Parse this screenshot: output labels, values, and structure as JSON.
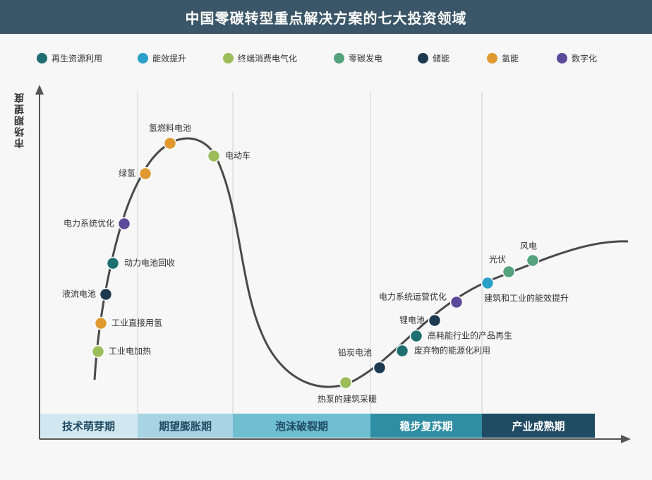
{
  "header": {
    "title": "中国零碳转型重点解决方案的七大投资领域"
  },
  "chart_data": {
    "type": "scatter",
    "title": "中国零碳转型重点解决方案的七大投资领域",
    "ylabel": "市场期望度",
    "xlabel": "",
    "grid": false,
    "legend_position": "top",
    "legend": [
      {
        "name": "再生资源利用",
        "color": "#1f6e72"
      },
      {
        "name": "能效提升",
        "color": "#2a9fc7"
      },
      {
        "name": "终端消费电气化",
        "color": "#9cbd5a"
      },
      {
        "name": "零碳发电",
        "color": "#55a27e"
      },
      {
        "name": "储能",
        "color": "#1d3a51"
      },
      {
        "name": "氢能",
        "color": "#e0992f"
      },
      {
        "name": "数字化",
        "color": "#5a4a9a"
      }
    ],
    "phases": [
      {
        "label": "技术萌芽期",
        "bg": "#d2e8f1",
        "fg": "#1f4b63"
      },
      {
        "label": "期望膨胀期",
        "bg": "#a8d3e2",
        "fg": "#1f4b63"
      },
      {
        "label": "泡沫破裂期",
        "bg": "#6fbfd1",
        "fg": "#1f4b63"
      },
      {
        "label": "稳步复苏期",
        "bg": "#2f8ea4",
        "fg": "#ffffff"
      },
      {
        "label": "产业成熟期",
        "bg": "#1f4b63",
        "fg": "#ffffff"
      }
    ],
    "points": [
      {
        "label": "工业电加热",
        "category": "终端消费电气化"
      },
      {
        "label": "工业直接用氢",
        "category": "氢能"
      },
      {
        "label": "液流电池",
        "category": "储能"
      },
      {
        "label": "动力电池回收",
        "category": "再生资源利用"
      },
      {
        "label": "电力系统优化",
        "category": "数字化"
      },
      {
        "label": "绿氢",
        "category": "氢能"
      },
      {
        "label": "氢燃料电池",
        "category": "氢能"
      },
      {
        "label": "电动车",
        "category": "终端消费电气化"
      },
      {
        "label": "热泵的建筑采暖",
        "category": "终端消费电气化"
      },
      {
        "label": "铅炭电池",
        "category": "储能"
      },
      {
        "label": "废弃物的能源化利用",
        "category": "再生资源利用"
      },
      {
        "label": "高耗能行业的产品再生",
        "category": "再生资源利用"
      },
      {
        "label": "锂电池",
        "category": "储能"
      },
      {
        "label": "电力系统运营优化",
        "category": "数字化"
      },
      {
        "label": "建筑和工业的能效提升",
        "category": "能效提升"
      },
      {
        "label": "光伏",
        "category": "零碳发电"
      },
      {
        "label": "风电",
        "category": "零碳发电"
      }
    ]
  }
}
